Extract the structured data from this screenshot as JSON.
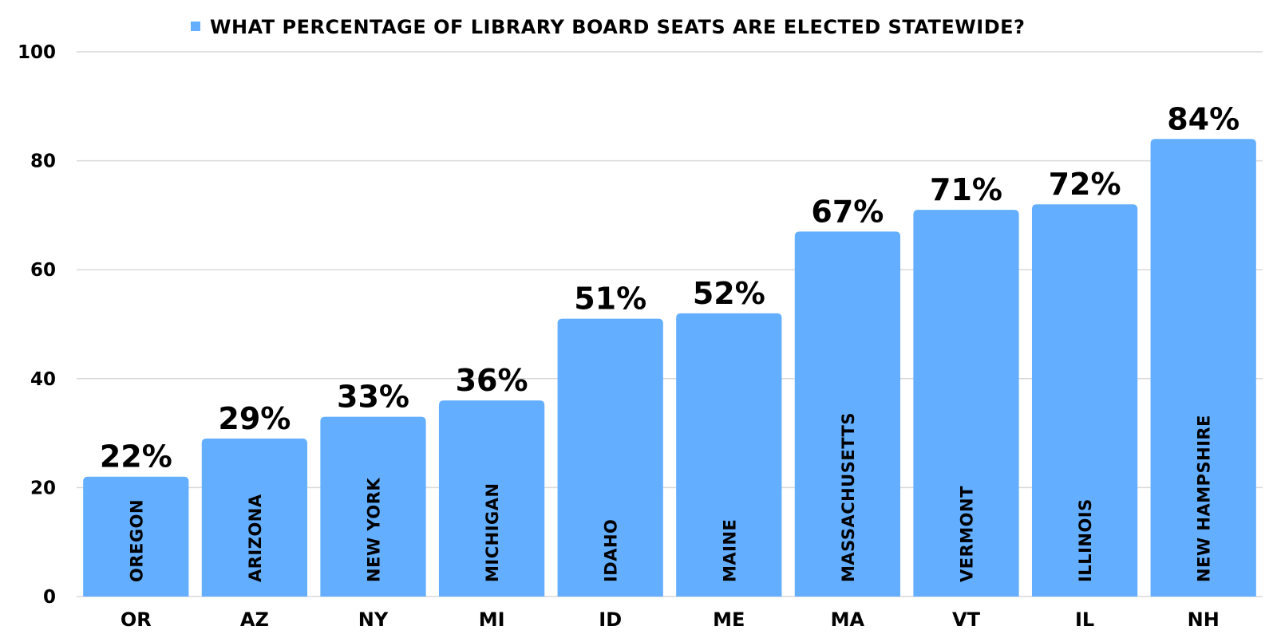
{
  "chart_data": {
    "type": "bar",
    "title": "",
    "xlabel": "",
    "ylabel": "",
    "categories": [
      "OR",
      "AZ",
      "NY",
      "MI",
      "ID",
      "ME",
      "MA",
      "VT",
      "IL",
      "NH"
    ],
    "bar_labels": [
      "OREGON",
      "ARIZONA",
      "NEW YORK",
      "MICHIGAN",
      "IDAHO",
      "MAINE",
      "MASSACHUSETTS",
      "VERMONT",
      "ILLINOIS",
      "NEW HAMPSHIRE"
    ],
    "series": [
      {
        "name": "WHAT PERCENTAGE OF LIBRARY BOARD SEATS ARE ELECTED STATEWIDE?",
        "values": [
          22,
          29,
          33,
          36,
          51,
          52,
          67,
          71,
          72,
          84
        ],
        "data_labels": [
          "22%",
          "29%",
          "33%",
          "36%",
          "51%",
          "52%",
          "67%",
          "71%",
          "72%",
          "84%"
        ],
        "color": "#63aeff"
      }
    ],
    "ylim": [
      0,
      100
    ],
    "yticks": [
      0,
      20,
      40,
      60,
      80,
      100
    ],
    "grid": true,
    "legend_position": "top-center"
  }
}
